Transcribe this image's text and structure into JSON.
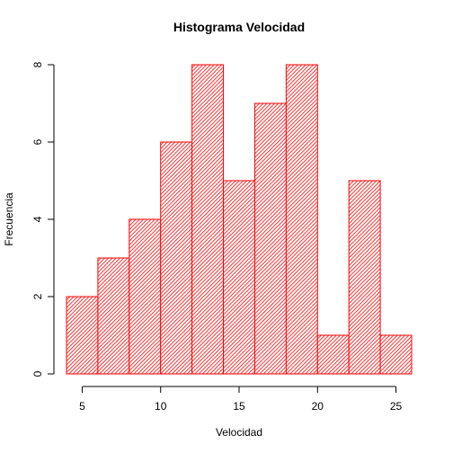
{
  "chart_data": {
    "type": "bar",
    "title": "Histograma Velocidad",
    "xlabel": "Velocidad",
    "ylabel": "Frecuencia",
    "bins": [
      [
        4,
        6
      ],
      [
        6,
        8
      ],
      [
        8,
        10
      ],
      [
        10,
        12
      ],
      [
        12,
        14
      ],
      [
        14,
        16
      ],
      [
        16,
        18
      ],
      [
        18,
        20
      ],
      [
        20,
        22
      ],
      [
        22,
        24
      ],
      [
        24,
        26
      ]
    ],
    "values": [
      2,
      3,
      4,
      6,
      8,
      5,
      7,
      8,
      1,
      5,
      1
    ],
    "xlim": [
      4,
      26
    ],
    "ylim": [
      0,
      8
    ],
    "x_ticks": [
      5,
      10,
      15,
      20,
      25
    ],
    "y_ticks": [
      0,
      2,
      4,
      6,
      8
    ],
    "bar_color": "#ff0000",
    "fill_pattern": "diagonal-hatch",
    "grid": false,
    "legend": "none"
  }
}
